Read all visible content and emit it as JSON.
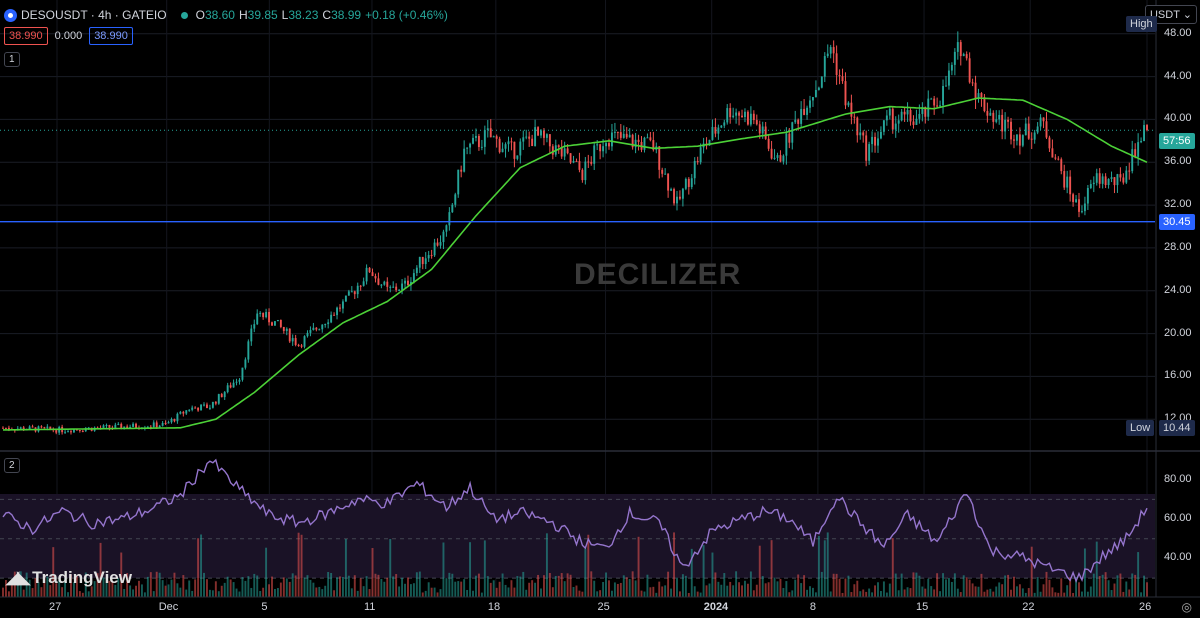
{
  "header": {
    "symbol": "DESOUSDT · 4h · GATEIO",
    "open_label": "O",
    "open": "38.60",
    "high_label": "H",
    "high": "39.85",
    "low_label": "L",
    "low": "38.23",
    "close_label": "C",
    "close": "38.99",
    "change": "+0.18 (+0.46%)"
  },
  "price_boxes": {
    "bid": "38.990",
    "spread": "0.000",
    "ask": "38.990"
  },
  "pane1_label": "1",
  "pane2_label": "2",
  "currency": "USDT",
  "watermark": "DECILIZER",
  "brand": "TradingView",
  "colors": {
    "up": "#26a69a",
    "down": "#ef5350",
    "ma": "#4cd137",
    "hline": "#2962ff",
    "rsi": "#7e57c2"
  },
  "chart_data": [
    {
      "type": "candlestick",
      "title": "",
      "series_name": "",
      "x_ticks": [
        "27",
        "Dec",
        "5",
        "11",
        "18",
        "25",
        "2024",
        "8",
        "15",
        "22",
        "26"
      ],
      "y_ticks": [
        "12.00",
        "16.00",
        "20.00",
        "24.00",
        "28.00",
        "32.00",
        "36.00",
        "40.00",
        "44.00",
        "48.00"
      ],
      "ylim": [
        9.5,
        50.5
      ],
      "high_label": "High",
      "low_label": "Low",
      "low_value": "10.44",
      "countdown": "57:56",
      "horizontal_line": {
        "value": 30.45,
        "label": "30.45"
      },
      "current_price": 38.99,
      "anchors": [
        [
          0,
          11.2
        ],
        [
          20,
          11.0
        ],
        [
          40,
          11.3
        ],
        [
          55,
          11.5
        ],
        [
          63,
          13.0
        ],
        [
          70,
          13.2
        ],
        [
          80,
          16.0
        ],
        [
          86,
          22.0
        ],
        [
          92,
          21.0
        ],
        [
          100,
          19.0
        ],
        [
          108,
          21.0
        ],
        [
          116,
          23.0
        ],
        [
          124,
          26.0
        ],
        [
          130,
          24.0
        ],
        [
          136,
          24.5
        ],
        [
          142,
          27.0
        ],
        [
          150,
          29.5
        ],
        [
          156,
          37.0
        ],
        [
          164,
          38.5
        ],
        [
          172,
          37.0
        ],
        [
          180,
          38.5
        ],
        [
          188,
          37.0
        ],
        [
          196,
          35.0
        ],
        [
          204,
          38.5
        ],
        [
          212,
          38.0
        ],
        [
          220,
          37.5
        ],
        [
          228,
          32.0
        ],
        [
          236,
          37.0
        ],
        [
          246,
          41.0
        ],
        [
          254,
          40.0
        ],
        [
          262,
          36.0
        ],
        [
          270,
          41.0
        ],
        [
          276,
          43.5
        ],
        [
          280,
          47.0
        ],
        [
          286,
          41.0
        ],
        [
          292,
          37.0
        ],
        [
          300,
          40.0
        ],
        [
          310,
          40.0
        ],
        [
          318,
          42.5
        ],
        [
          324,
          47.0
        ],
        [
          330,
          42.0
        ],
        [
          336,
          40.0
        ],
        [
          344,
          38.5
        ],
        [
          352,
          39.5
        ],
        [
          358,
          35.0
        ],
        [
          364,
          31.5
        ],
        [
          370,
          34.5
        ],
        [
          378,
          34.0
        ],
        [
          384,
          38.0
        ],
        [
          387,
          38.99
        ]
      ],
      "ma_anchors": [
        [
          0,
          11.0
        ],
        [
          60,
          11.2
        ],
        [
          72,
          12.0
        ],
        [
          85,
          14.5
        ],
        [
          100,
          18.0
        ],
        [
          115,
          21.0
        ],
        [
          130,
          23.0
        ],
        [
          145,
          26.0
        ],
        [
          160,
          31.0
        ],
        [
          175,
          35.5
        ],
        [
          190,
          37.5
        ],
        [
          205,
          38.0
        ],
        [
          220,
          37.3
        ],
        [
          235,
          37.5
        ],
        [
          250,
          38.2
        ],
        [
          265,
          38.8
        ],
        [
          285,
          40.5
        ],
        [
          300,
          41.2
        ],
        [
          315,
          41.0
        ],
        [
          330,
          42.0
        ],
        [
          345,
          41.8
        ],
        [
          360,
          40.0
        ],
        [
          375,
          37.5
        ],
        [
          387,
          36.0
        ]
      ]
    },
    {
      "type": "line",
      "title": "",
      "series_name": "",
      "y_ticks": [
        "40.00",
        "60.00",
        "80.00"
      ],
      "ylim": [
        24,
        92
      ],
      "bands": [
        30,
        50,
        70
      ],
      "anchors": [
        [
          0,
          62
        ],
        [
          10,
          55
        ],
        [
          20,
          64
        ],
        [
          30,
          58
        ],
        [
          40,
          60
        ],
        [
          50,
          65
        ],
        [
          60,
          72
        ],
        [
          70,
          90
        ],
        [
          80,
          75
        ],
        [
          90,
          62
        ],
        [
          100,
          58
        ],
        [
          110,
          63
        ],
        [
          120,
          70
        ],
        [
          130,
          68
        ],
        [
          140,
          78
        ],
        [
          150,
          66
        ],
        [
          158,
          76
        ],
        [
          166,
          60
        ],
        [
          176,
          63
        ],
        [
          186,
          58
        ],
        [
          196,
          48
        ],
        [
          204,
          45
        ],
        [
          212,
          63
        ],
        [
          222,
          58
        ],
        [
          230,
          35
        ],
        [
          240,
          54
        ],
        [
          250,
          60
        ],
        [
          258,
          64
        ],
        [
          266,
          60
        ],
        [
          274,
          48
        ],
        [
          282,
          72
        ],
        [
          290,
          58
        ],
        [
          298,
          46
        ],
        [
          306,
          62
        ],
        [
          316,
          48
        ],
        [
          326,
          74
        ],
        [
          334,
          44
        ],
        [
          344,
          41
        ],
        [
          354,
          35
        ],
        [
          364,
          30
        ],
        [
          372,
          41
        ],
        [
          380,
          50
        ],
        [
          387,
          66
        ]
      ]
    }
  ]
}
